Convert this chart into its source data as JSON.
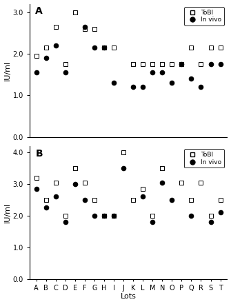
{
  "lots": [
    "A",
    "B",
    "C",
    "D",
    "E",
    "F",
    "G",
    "H",
    "I",
    "J",
    "K",
    "L",
    "M",
    "N",
    "O",
    "P",
    "Q",
    "R",
    "S",
    "T"
  ],
  "panel_A": {
    "tobi": [
      1.95,
      2.15,
      2.65,
      1.75,
      3.0,
      2.6,
      2.6,
      2.15,
      2.15,
      null,
      1.75,
      1.75,
      1.75,
      1.75,
      1.75,
      1.75,
      2.15,
      1.75,
      2.15,
      2.15
    ],
    "in_vivo": [
      1.55,
      1.9,
      2.2,
      1.55,
      null,
      2.65,
      2.15,
      2.15,
      1.3,
      null,
      1.2,
      1.2,
      1.55,
      1.55,
      1.3,
      1.75,
      1.4,
      1.2,
      1.75,
      1.75
    ]
  },
  "panel_B": {
    "tobi": [
      3.2,
      2.5,
      3.05,
      2.0,
      3.5,
      3.05,
      2.5,
      2.0,
      2.0,
      4.0,
      2.5,
      2.85,
      2.0,
      3.5,
      null,
      3.05,
      2.5,
      3.05,
      2.0,
      2.5
    ],
    "in_vivo": [
      2.85,
      2.25,
      2.6,
      1.8,
      3.0,
      2.5,
      2.0,
      2.0,
      2.0,
      3.5,
      null,
      2.6,
      1.8,
      3.05,
      2.5,
      null,
      2.0,
      null,
      1.8,
      2.1
    ]
  },
  "ylim_A": [
    0.0,
    3.2
  ],
  "ylim_B": [
    0.0,
    4.2
  ],
  "yticks_A": [
    0.0,
    1.0,
    2.0,
    3.0
  ],
  "yticks_B": [
    0.0,
    1.0,
    2.0,
    3.0,
    4.0
  ],
  "ylabel": "IU/ml",
  "xlabel": "Lots",
  "panel_A_label": "A",
  "panel_B_label": "B"
}
